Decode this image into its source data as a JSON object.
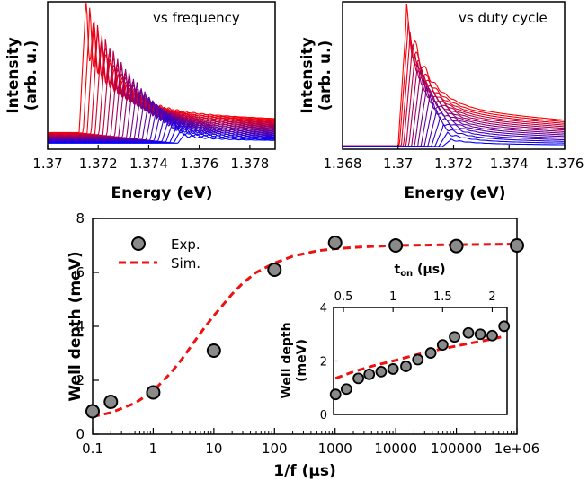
{
  "chart_data": [
    {
      "type": "line",
      "panel": "top-left",
      "annotation": "vs frequency",
      "xlabel": "Energy (eV)",
      "ylabel_line1": "Intensity",
      "ylabel_line2": "(arb. u.)",
      "xlim": [
        1.37,
        1.379
      ],
      "xticks": [
        "1.37",
        "1.372",
        "1.374",
        "1.376",
        "1.378"
      ],
      "xtick_values": [
        1.37,
        1.372,
        1.374,
        1.376,
        1.378
      ],
      "n_series": 26,
      "color_gradient": [
        "#ff0000",
        "#0000ff"
      ],
      "series_model": {
        "edge_start_eV": 1.3715,
        "edge_end_eV": 1.3754,
        "peak_height_first": 1.0,
        "peak_height_last": 0.08,
        "baseline_first": 0.27,
        "baseline_last": 0.05,
        "fringe_period_eV": 0.00033
      }
    },
    {
      "type": "line",
      "panel": "top-right",
      "annotation": "vs duty cycle",
      "xlabel": "Energy (eV)",
      "ylabel_line1": "Intensity",
      "ylabel_line2": "(arb. u.)",
      "xlim": [
        1.368,
        1.376
      ],
      "xticks": [
        "1.368",
        "1.37",
        "1.372",
        "1.374",
        "1.376"
      ],
      "xtick_values": [
        1.368,
        1.37,
        1.372,
        1.374,
        1.376
      ],
      "n_series": 16,
      "color_gradient": [
        "#ff0000",
        "#0000ff"
      ],
      "series_model": {
        "edge_start_eV": 1.3703,
        "edge_end_eV": 1.3719,
        "peak_height_first": 0.95,
        "peak_height_last": 0.05,
        "tail_first": 0.3,
        "tail_last": 0.02
      }
    },
    {
      "type": "scatter",
      "panel": "bottom-main",
      "xlabel": "1/f (μs)",
      "ylabel": "Well depth (meV)",
      "xscale": "log",
      "xlim": [
        0.1,
        1000000
      ],
      "ylim": [
        0,
        8
      ],
      "xticks": [
        "0.1",
        "1",
        "10",
        "100",
        "1000",
        "10000",
        "100000",
        "1e+06"
      ],
      "xtick_values": [
        0.1,
        1,
        10,
        100,
        1000,
        10000,
        100000,
        1000000
      ],
      "yticks": [
        "0",
        "2",
        "4",
        "6",
        "8"
      ],
      "ytick_values": [
        0,
        2,
        4,
        6,
        8
      ],
      "legend": {
        "position": "top-left",
        "exp_label": "Exp.",
        "sim_label": "Sim."
      },
      "series": [
        {
          "name": "Exp.",
          "style": "grey-circles",
          "x": [
            0.1,
            0.2,
            1,
            10,
            100,
            1000,
            10000,
            100000,
            1000000
          ],
          "y": [
            0.85,
            1.2,
            1.55,
            3.1,
            6.1,
            7.1,
            7.0,
            6.98,
            7.0
          ]
        },
        {
          "name": "Sim.",
          "style": "red-dashed",
          "x": [
            0.1,
            0.2,
            0.5,
            1,
            2,
            3,
            5,
            7,
            10,
            20,
            30,
            50,
            100,
            200,
            500,
            1000,
            3000,
            10000,
            100000,
            1000000
          ],
          "y": [
            0.65,
            0.8,
            1.15,
            1.6,
            2.3,
            2.8,
            3.5,
            3.95,
            4.4,
            5.2,
            5.6,
            6.0,
            6.35,
            6.6,
            6.8,
            6.88,
            6.95,
            7.0,
            7.03,
            7.05
          ]
        }
      ]
    },
    {
      "type": "scatter",
      "panel": "bottom-inset",
      "xlabel_t": "t",
      "xlabel_sub": "on",
      "xlabel_unit": " (μs)",
      "ylabel_line1": "Well depth",
      "ylabel_line2": "(meV)",
      "xlim": [
        0.4,
        2.15
      ],
      "ylim": [
        0,
        4
      ],
      "xticks": [
        "0.5",
        "1",
        "1.5",
        "2"
      ],
      "xtick_values": [
        0.5,
        1,
        1.5,
        2
      ],
      "yticks": [
        "0",
        "2",
        "4"
      ],
      "ytick_values": [
        0,
        2,
        4
      ],
      "series": [
        {
          "name": "Exp.",
          "style": "grey-circles",
          "x": [
            0.42,
            0.53,
            0.65,
            0.76,
            0.88,
            1.0,
            1.13,
            1.25,
            1.38,
            1.5,
            1.62,
            1.76,
            1.88,
            2.0,
            2.12
          ],
          "y": [
            0.75,
            0.95,
            1.35,
            1.5,
            1.6,
            1.7,
            1.8,
            2.05,
            2.3,
            2.6,
            2.9,
            3.05,
            3.0,
            2.95,
            3.3
          ]
        },
        {
          "name": "Sim.",
          "style": "red-dashed",
          "x": [
            0.42,
            0.6,
            0.8,
            1.0,
            1.2,
            1.4,
            1.6,
            1.8,
            2.0,
            2.12
          ],
          "y": [
            1.35,
            1.6,
            1.82,
            2.0,
            2.2,
            2.38,
            2.53,
            2.68,
            2.82,
            2.92
          ]
        }
      ]
    }
  ]
}
